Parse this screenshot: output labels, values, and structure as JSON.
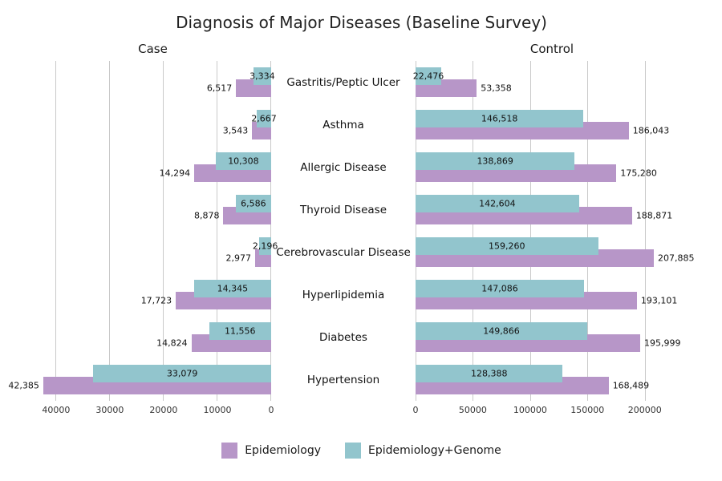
{
  "title": "Diagnosis of Major Diseases (Baseline Survey)",
  "panels": {
    "case": {
      "label": "Case"
    },
    "control": {
      "label": "Control"
    }
  },
  "colors": {
    "epidemiology": "#b796c8",
    "epidemiology_genome": "#92c5cd",
    "gridline": "#c9c9c9"
  },
  "legend": [
    {
      "name": "Epidemiology",
      "color": "#b796c8"
    },
    {
      "name": "Epidemiology+Genome",
      "color": "#92c5cd"
    }
  ],
  "chart_data": {
    "type": "bar",
    "orientation": "horizontal",
    "title": "Diagnosis of Major Diseases (Baseline Survey)",
    "grid": true,
    "legend_position": "bottom",
    "categories": [
      "Gastritis/Peptic Ulcer",
      "Asthma",
      "Allergic Disease",
      "Thyroid Disease",
      "Cerebrovascular Disease",
      "Hyperlipidemia",
      "Diabetes",
      "Hypertension"
    ],
    "panels": [
      {
        "name": "Case",
        "axis": {
          "ticks": [
            40000,
            30000,
            20000,
            10000,
            0
          ],
          "max": 44000,
          "direction": "right-to-left"
        },
        "series": [
          {
            "name": "Epidemiology",
            "values": [
              6517,
              3543,
              14294,
              8878,
              2977,
              17723,
              14824,
              42385
            ]
          },
          {
            "name": "Epidemiology+Genome",
            "values": [
              3334,
              2667,
              10308,
              6586,
              2196,
              14345,
              11556,
              33079
            ]
          }
        ]
      },
      {
        "name": "Control",
        "axis": {
          "ticks": [
            0,
            50000,
            100000,
            150000,
            200000
          ],
          "max": 238000,
          "direction": "left-to-right"
        },
        "series": [
          {
            "name": "Epidemiology",
            "values": [
              53358,
              186043,
              175280,
              188871,
              207885,
              193101,
              195999,
              168489
            ]
          },
          {
            "name": "Epidemiology+Genome",
            "values": [
              22476,
              146518,
              138869,
              142604,
              159260,
              147086,
              149866,
              128388
            ]
          }
        ]
      }
    ]
  }
}
